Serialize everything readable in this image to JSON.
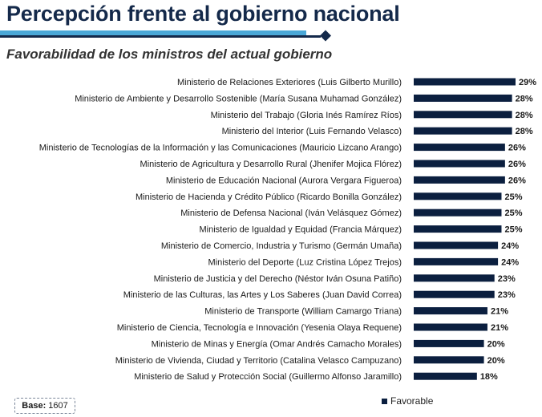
{
  "header": {
    "title": "Percepción frente al gobierno nacional",
    "subtitle": "Favorabilidad de los ministros del actual gobierno"
  },
  "colors": {
    "bar": "#0b1f3f",
    "title": "#14294a",
    "rule_light": "#4aa8d8",
    "rule_dark": "#14294a"
  },
  "base": {
    "label": "Base:",
    "value": "1607"
  },
  "legend": {
    "label": "Favorable"
  },
  "chart_data": {
    "type": "bar",
    "orientation": "horizontal",
    "title": "Favorabilidad de los ministros del actual gobierno",
    "xlim": [
      0,
      29
    ],
    "legend_position": "bottom",
    "grid": false,
    "categories": [
      "Ministerio de Relaciones Exteriores (Luis Gilberto Murillo)",
      "Ministerio de Ambiente y Desarrollo Sostenible (María Susana Muhamad González)",
      "Ministerio del Trabajo (Gloria Inés Ramírez Ríos)",
      "Ministerio del Interior (Luis Fernando Velasco)",
      "Ministerio de Tecnologías de la Información y las Comunicaciones (Mauricio Lizcano Arango)",
      "Ministerio de Agricultura y Desarrollo Rural (Jhenifer Mojica Flórez)",
      "Ministerio de Educación Nacional (Aurora Vergara Figueroa)",
      "Ministerio de Hacienda y Crédito Público (Ricardo Bonilla González)",
      "Ministerio de Defensa Nacional (Iván Velásquez Gómez)",
      "Ministerio de Igualdad y Equidad (Francia Márquez)",
      "Ministerio de Comercio, Industria y Turismo (Germán Umaña)",
      "Ministerio del Deporte (Luz Cristina López Trejos)",
      "Ministerio de Justicia y del Derecho (Néstor Iván Osuna Patiño)",
      "Ministerio de las Culturas, las Artes y Los Saberes (Juan David Correa)",
      "Ministerio de Transporte (William Camargo Triana)",
      "Ministerio de Ciencia, Tecnología e Innovación (Yesenia Olaya Requene)",
      "Ministerio de Minas y Energía (Omar Andrés Camacho Morales)",
      "Ministerio de Vivienda, Ciudad y Territorio (Catalina Velasco Campuzano)",
      "Ministerio de Salud y Protección Social (Guillermo Alfonso Jaramillo)"
    ],
    "series": [
      {
        "name": "Favorable",
        "values": [
          29,
          28,
          28,
          28,
          26,
          26,
          26,
          25,
          25,
          25,
          24,
          24,
          23,
          23,
          21,
          21,
          20,
          20,
          18
        ],
        "labels": [
          "29%",
          "28%",
          "28%",
          "28%",
          "26%",
          "26%",
          "26%",
          "25%",
          "25%",
          "25%",
          "24%",
          "24%",
          "23%",
          "23%",
          "21%",
          "21%",
          "20%",
          "20%",
          "18%"
        ]
      }
    ]
  }
}
